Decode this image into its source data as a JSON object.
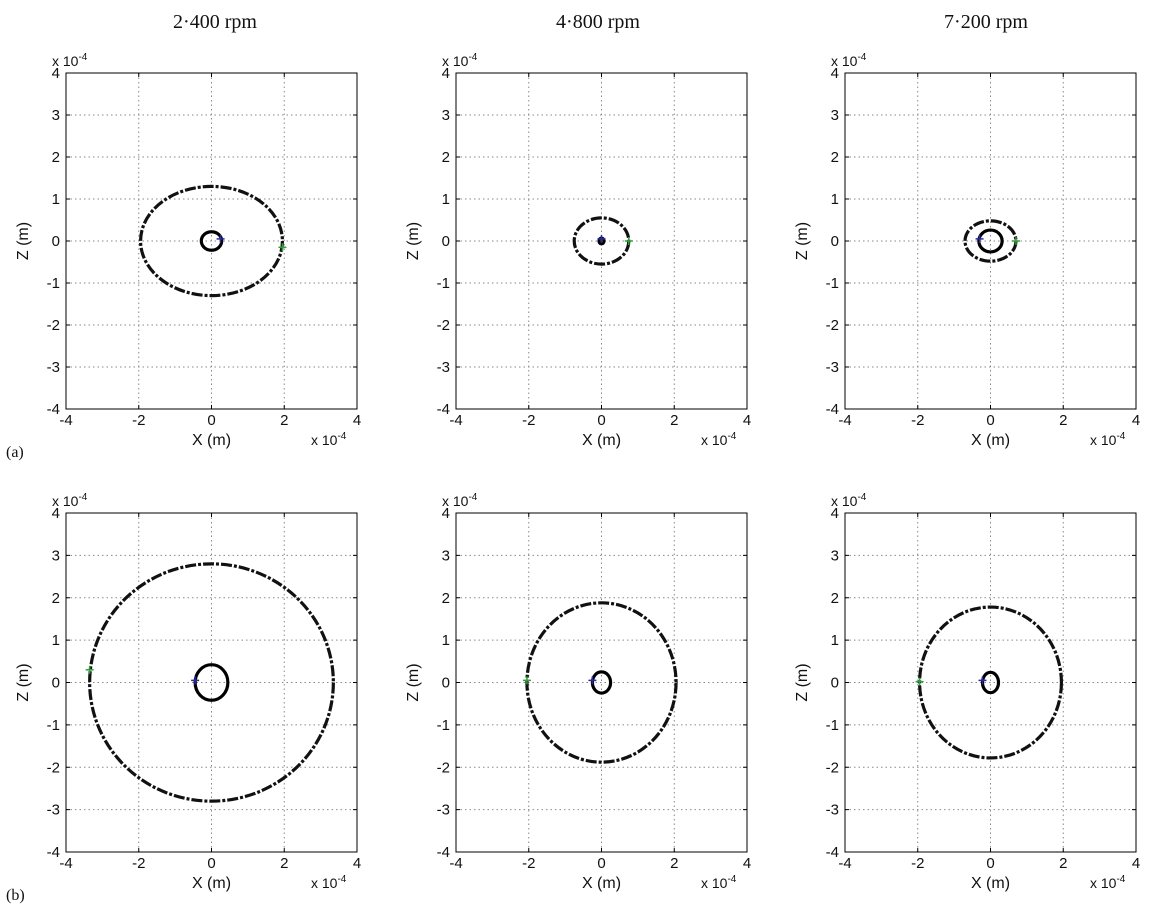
{
  "figure": {
    "column_titles": [
      "2·400 rpm",
      "4·800 rpm",
      "7·200 rpm"
    ],
    "row_labels": [
      "(a)",
      "(b)"
    ]
  },
  "chart_data": [
    {
      "type": "scatter",
      "row": 0,
      "col": 0,
      "xlabel": "X (m)",
      "ylabel": "Z (m)",
      "x_multiplier": "x 10",
      "y_multiplier": "x 10",
      "exponent": "-4",
      "xlim": [
        -4,
        4
      ],
      "ylim": [
        -4,
        4
      ],
      "xticks": [
        -4,
        -2,
        0,
        2,
        4
      ],
      "yticks": [
        -4,
        -3,
        -2,
        -1,
        0,
        1,
        2,
        3,
        4
      ],
      "grid": true,
      "series": [
        {
          "shape": "ellipse",
          "style": "dashed",
          "center": [
            0,
            0
          ],
          "radius": [
            1.95,
            1.3
          ],
          "color": "#111111"
        },
        {
          "shape": "ellipse",
          "style": "solid",
          "center": [
            0,
            0
          ],
          "radius": [
            0.28,
            0.22
          ],
          "color": "#000000"
        }
      ],
      "markers": [
        {
          "x": 1.95,
          "y": -0.15,
          "color": "#2e9e3a"
        },
        {
          "x": 0.25,
          "y": 0.05,
          "color": "#2a2a9e"
        }
      ]
    },
    {
      "type": "scatter",
      "row": 0,
      "col": 1,
      "xlabel": "X (m)",
      "ylabel": "Z (m)",
      "x_multiplier": "x 10",
      "y_multiplier": "x 10",
      "exponent": "-4",
      "xlim": [
        -4,
        4
      ],
      "ylim": [
        -4,
        4
      ],
      "xticks": [
        -4,
        -2,
        0,
        2,
        4
      ],
      "yticks": [
        -4,
        -3,
        -2,
        -1,
        0,
        1,
        2,
        3,
        4
      ],
      "grid": true,
      "series": [
        {
          "shape": "ellipse",
          "style": "dashed",
          "center": [
            0,
            0
          ],
          "radius": [
            0.75,
            0.55
          ],
          "color": "#111111"
        },
        {
          "shape": "ellipse",
          "style": "solid",
          "center": [
            0,
            0
          ],
          "radius": [
            0.06,
            0.07
          ],
          "color": "#000000"
        }
      ],
      "markers": [
        {
          "x": 0.75,
          "y": 0.0,
          "color": "#2e9e3a"
        },
        {
          "x": 0.0,
          "y": 0.05,
          "color": "#2a2a9e"
        }
      ]
    },
    {
      "type": "scatter",
      "row": 0,
      "col": 2,
      "xlabel": "X (m)",
      "ylabel": "Z (m)",
      "x_multiplier": "x 10",
      "y_multiplier": "x 10",
      "exponent": "-4",
      "xlim": [
        -4,
        4
      ],
      "ylim": [
        -4,
        4
      ],
      "xticks": [
        -4,
        -2,
        0,
        2,
        4
      ],
      "yticks": [
        -4,
        -3,
        -2,
        -1,
        0,
        1,
        2,
        3,
        4
      ],
      "grid": true,
      "series": [
        {
          "shape": "ellipse",
          "style": "dashed",
          "center": [
            0,
            0
          ],
          "radius": [
            0.7,
            0.48
          ],
          "color": "#111111"
        },
        {
          "shape": "ellipse",
          "style": "solid",
          "center": [
            0,
            0
          ],
          "radius": [
            0.32,
            0.26
          ],
          "color": "#000000"
        }
      ],
      "markers": [
        {
          "x": 0.7,
          "y": 0.0,
          "color": "#2e9e3a"
        },
        {
          "x": -0.3,
          "y": 0.05,
          "color": "#2a2a9e"
        }
      ]
    },
    {
      "type": "scatter",
      "row": 1,
      "col": 0,
      "xlabel": "X (m)",
      "ylabel": "Z (m)",
      "x_multiplier": "x 10",
      "y_multiplier": "x 10",
      "exponent": "-4",
      "xlim": [
        -4,
        4
      ],
      "ylim": [
        -4,
        4
      ],
      "xticks": [
        -4,
        -2,
        0,
        2,
        4
      ],
      "yticks": [
        -4,
        -3,
        -2,
        -1,
        0,
        1,
        2,
        3,
        4
      ],
      "grid": true,
      "series": [
        {
          "shape": "ellipse",
          "style": "dashed",
          "center": [
            0,
            0
          ],
          "radius": [
            3.35,
            2.8
          ],
          "color": "#111111"
        },
        {
          "shape": "ellipse",
          "style": "solid",
          "center": [
            0,
            0
          ],
          "radius": [
            0.45,
            0.42
          ],
          "color": "#000000"
        }
      ],
      "markers": [
        {
          "x": -3.35,
          "y": 0.3,
          "color": "#2e9e3a"
        },
        {
          "x": -0.45,
          "y": 0.05,
          "color": "#2a2a9e"
        }
      ]
    },
    {
      "type": "scatter",
      "row": 1,
      "col": 1,
      "xlabel": "X (m)",
      "ylabel": "Z (m)",
      "x_multiplier": "x 10",
      "y_multiplier": "x 10",
      "exponent": "-4",
      "xlim": [
        -4,
        4
      ],
      "ylim": [
        -4,
        4
      ],
      "xticks": [
        -4,
        -2,
        0,
        2,
        4
      ],
      "yticks": [
        -4,
        -3,
        -2,
        -1,
        0,
        1,
        2,
        3,
        4
      ],
      "grid": true,
      "series": [
        {
          "shape": "ellipse",
          "style": "dashed",
          "center": [
            0,
            0
          ],
          "radius": [
            2.05,
            1.88
          ],
          "color": "#111111"
        },
        {
          "shape": "ellipse",
          "style": "solid",
          "center": [
            0,
            0
          ],
          "radius": [
            0.25,
            0.25
          ],
          "color": "#000000"
        }
      ],
      "markers": [
        {
          "x": -2.05,
          "y": 0.05,
          "color": "#2e9e3a"
        },
        {
          "x": -0.25,
          "y": 0.05,
          "color": "#2a2a9e"
        }
      ]
    },
    {
      "type": "scatter",
      "row": 1,
      "col": 2,
      "xlabel": "X (m)",
      "ylabel": "Z (m)",
      "x_multiplier": "x 10",
      "y_multiplier": "x 10",
      "exponent": "-4",
      "xlim": [
        -4,
        4
      ],
      "ylim": [
        -4,
        4
      ],
      "xticks": [
        -4,
        -2,
        0,
        2,
        4
      ],
      "yticks": [
        -4,
        -3,
        -2,
        -1,
        0,
        1,
        2,
        3,
        4
      ],
      "grid": true,
      "series": [
        {
          "shape": "ellipse",
          "style": "dashed",
          "center": [
            0,
            0
          ],
          "radius": [
            1.95,
            1.78
          ],
          "color": "#111111"
        },
        {
          "shape": "ellipse",
          "style": "solid",
          "center": [
            0,
            0
          ],
          "radius": [
            0.22,
            0.24
          ],
          "color": "#000000"
        }
      ],
      "markers": [
        {
          "x": -1.95,
          "y": 0.02,
          "color": "#2e9e3a"
        },
        {
          "x": -0.22,
          "y": 0.05,
          "color": "#2a2a9e"
        }
      ]
    }
  ]
}
